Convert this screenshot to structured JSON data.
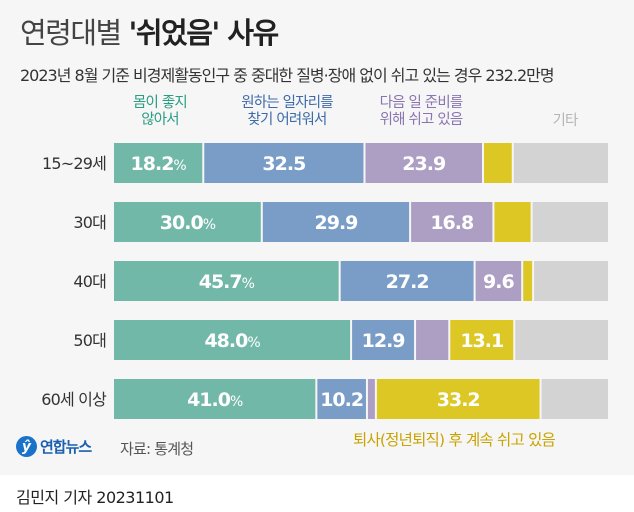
{
  "header": {
    "title_light": "연령대별 ",
    "title_bold": "'쉬었음' 사유",
    "subtitle": "2023년 8월 기준 비경제활동인구 중 중대한 질병·장애 없이 쉬고 있는 경우 232.2만명"
  },
  "chart_data": {
    "type": "bar",
    "orientation": "horizontal-stacked-100",
    "title": "연령대별 '쉬었음' 사유",
    "unit": "%",
    "categories": [
      "15~29세",
      "30대",
      "40대",
      "50대",
      "60세 이상"
    ],
    "series": [
      {
        "name": "몸이 좋지\n않아서",
        "color": "#72b8a8",
        "label_color": "#2a9d82",
        "values": [
          18.2,
          30.0,
          45.7,
          48.0,
          41.0
        ],
        "labeled": [
          true,
          true,
          true,
          true,
          true
        ]
      },
      {
        "name": "원하는 일자리를\n찾기 어려워서",
        "color": "#7a9dc8",
        "label_color": "#3d6aa8",
        "values": [
          32.5,
          29.9,
          27.2,
          12.9,
          10.2
        ],
        "labeled": [
          true,
          true,
          true,
          true,
          true
        ]
      },
      {
        "name": "다음 일 준비를\n위해 쉬고 있음",
        "color": "#ad9fc4",
        "label_color": "#8a75b0",
        "values": [
          23.9,
          16.8,
          9.6,
          6.9,
          1.8
        ],
        "labeled": [
          true,
          true,
          true,
          false,
          false
        ]
      },
      {
        "name": "퇴사(정년퇴직) 후 계속 쉬고 있음",
        "color": "#dcc725",
        "label_color": "#c9a400",
        "values": [
          6.0,
          7.7,
          2.2,
          13.1,
          33.2
        ],
        "labeled": [
          false,
          false,
          false,
          true,
          true
        ]
      },
      {
        "name": "기타",
        "color": "#d3d3d3",
        "label_color": "#b5b5b5",
        "values": [
          19.4,
          15.6,
          15.3,
          19.1,
          13.8
        ],
        "labeled": [
          false,
          false,
          false,
          false,
          false
        ]
      }
    ],
    "legend": "top",
    "grid": false
  },
  "footer": {
    "logo_text": "연합뉴스",
    "source": "자료: 통계청",
    "byline": "김민지 기자  20231101"
  }
}
